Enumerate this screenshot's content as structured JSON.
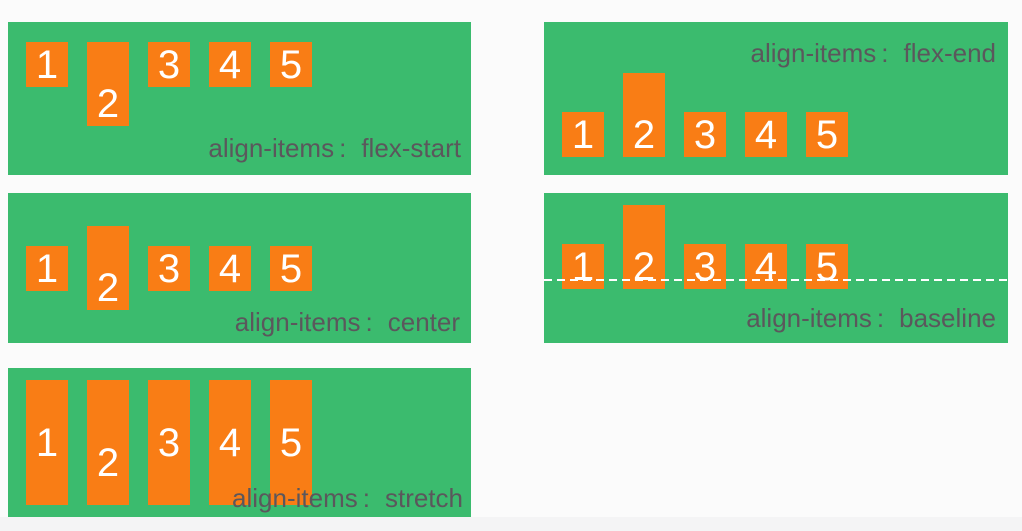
{
  "punct": {
    "colon": ":"
  },
  "colors": {
    "panel_green": "#3bbb6e",
    "item_orange": "#f97d15",
    "label_text": "#5b575c",
    "number_text": "#ffffff",
    "baseline_line": "#ffffff",
    "page_background": "#fbfbfb",
    "footer_strip": "#f4f4f5"
  },
  "panels": [
    {
      "name": "flex-start",
      "label_property": "align-items",
      "label_value": "flex-start",
      "items": [
        {
          "label": "1"
        },
        {
          "label": "2"
        },
        {
          "label": "3"
        },
        {
          "label": "4"
        },
        {
          "label": "5"
        }
      ]
    },
    {
      "name": "flex-end",
      "label_property": "align-items",
      "label_value": "flex-end",
      "items": [
        {
          "label": "1"
        },
        {
          "label": "2"
        },
        {
          "label": "3"
        },
        {
          "label": "4"
        },
        {
          "label": "5"
        }
      ]
    },
    {
      "name": "center",
      "label_property": "align-items",
      "label_value": "center",
      "items": [
        {
          "label": "1"
        },
        {
          "label": "2"
        },
        {
          "label": "3"
        },
        {
          "label": "4"
        },
        {
          "label": "5"
        }
      ]
    },
    {
      "name": "baseline",
      "label_property": "align-items",
      "label_value": "baseline",
      "items": [
        {
          "label": "1"
        },
        {
          "label": "2"
        },
        {
          "label": "3"
        },
        {
          "label": "4"
        },
        {
          "label": "5"
        }
      ]
    },
    {
      "name": "stretch",
      "label_property": "align-items",
      "label_value": "stretch",
      "items": [
        {
          "label": "1"
        },
        {
          "label": "2"
        },
        {
          "label": "3"
        },
        {
          "label": "4"
        },
        {
          "label": "5"
        }
      ]
    }
  ]
}
